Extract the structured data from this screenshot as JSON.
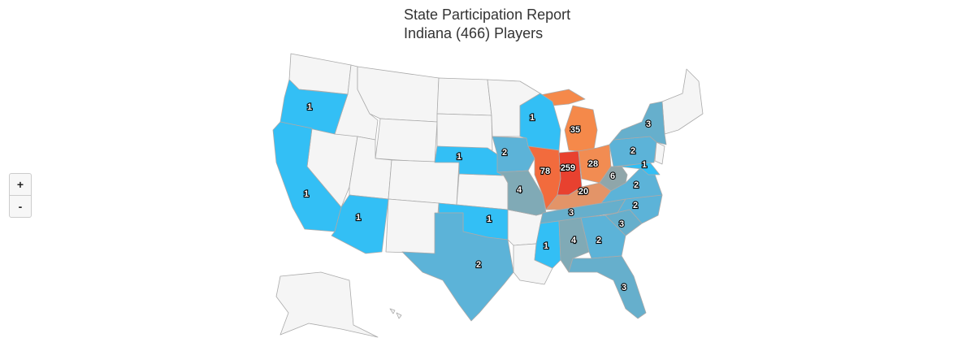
{
  "title": "State Participation Report",
  "subtitle": "Indiana (466) Players",
  "zoom_controls": [
    "+",
    "-"
  ],
  "regions": [
    {
      "value": 1,
      "color": "#33bff5"
    },
    {
      "value": 1,
      "color": "#33bff5"
    },
    {
      "value": 1,
      "color": "#33bff5"
    },
    {
      "value": 1,
      "color": "#33bff5"
    },
    {
      "value": 1,
      "color": "#33bff5"
    },
    {
      "value": 2,
      "color": "#5cb3d8"
    },
    {
      "value": 2,
      "color": "#5cb3d8"
    },
    {
      "value": 4,
      "color": "#80aab6"
    },
    {
      "value": 1,
      "color": "#33bff5"
    },
    {
      "value": 78,
      "color": "#f26b3d"
    },
    {
      "value": 259,
      "color": "#e8412f"
    },
    {
      "value": 35,
      "color": "#f5894a"
    },
    {
      "value": 28,
      "color": "#f28c52"
    },
    {
      "value": 20,
      "color": "#e39468"
    },
    {
      "value": 6,
      "color": "#8fa6aa"
    },
    {
      "value": 3,
      "color": "#66afcc"
    },
    {
      "value": 1,
      "color": "#33bff5"
    },
    {
      "value": 4,
      "color": "#80aab6"
    },
    {
      "value": 2,
      "color": "#5cb3d8"
    },
    {
      "value": 3,
      "color": "#66afcc"
    },
    {
      "value": 2,
      "color": "#5cb3d8"
    },
    {
      "value": 2,
      "color": "#5cb3d8"
    },
    {
      "value": 2,
      "color": "#5cb3d8"
    },
    {
      "value": 3,
      "color": "#66afcc"
    },
    {
      "value": 1,
      "color": "#33bff5"
    },
    {
      "value": 3,
      "color": "#66afcc"
    }
  ]
}
